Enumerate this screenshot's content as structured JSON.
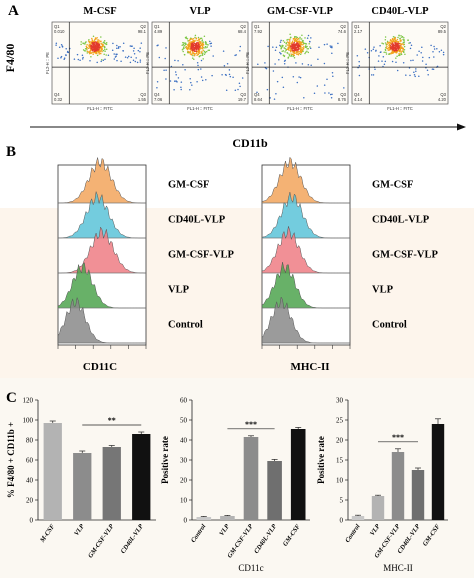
{
  "panel_labels": {
    "a": "A",
    "b": "B",
    "c": "C"
  },
  "panel_a": {
    "y_axis_label": "F4/80",
    "x_axis_label": "CD11b",
    "tick_x_label": "FL1-H :: FITC",
    "tick_y_label": "FL2-H :: PE",
    "plots": [
      {
        "title": "M-CSF",
        "q1": "0.010",
        "q2": "98.1",
        "q3": "1.55",
        "q4": "0.32"
      },
      {
        "title": "VLP",
        "q1": "4.89",
        "q2": "68.4",
        "q3": "19.7",
        "q4": "7.06"
      },
      {
        "title": "GM-CSF-VLP",
        "q1": "7.92",
        "q2": "74.6",
        "q3": "8.76",
        "q4": "8.64"
      },
      {
        "title": "CD40L-VLP",
        "q1": "2.17",
        "q2": "89.5",
        "q3": "4.20",
        "q4": "4.14"
      }
    ]
  },
  "panel_b": {
    "groups": [
      "GM-CSF",
      "CD40L-VLP",
      "GM-CSF-VLP",
      "VLP",
      "Control"
    ],
    "colors": [
      "#f2a55c",
      "#5bc3d8",
      "#ee7c84",
      "#4ea34e",
      "#8a8a8a"
    ],
    "left_xlabel": "CD11C",
    "right_xlabel": "MHC-II"
  },
  "chart_data": [
    {
      "type": "bar",
      "categories": [
        "M-CSF",
        "VLP",
        "GM-CSF-VLP",
        "CD40L-VLP"
      ],
      "values": [
        97,
        67,
        73,
        86
      ],
      "errors": [
        2,
        2,
        1.5,
        2
      ],
      "colors": [
        "#b3b3b3",
        "#8c8c8c",
        "#767676",
        "#111111"
      ],
      "ylabel": "% F4/80 + CD11b +",
      "xlabel": "",
      "ylim": [
        0,
        120
      ],
      "yticks": [
        0,
        20,
        40,
        60,
        80,
        100,
        120
      ],
      "significance": {
        "label": "**",
        "from": 1,
        "to": 3
      }
    },
    {
      "type": "bar",
      "categories": [
        "Control",
        "VLP",
        "GM-CSF-VLP",
        "CD40L-VLP",
        "GM-CSF"
      ],
      "values": [
        1.5,
        2,
        41.5,
        29.5,
        45.5
      ],
      "errors": [
        0.3,
        0.3,
        0.6,
        0.8,
        0.8
      ],
      "colors": [
        "#c8c8c8",
        "#b3b3b3",
        "#8c8c8c",
        "#6f6f6f",
        "#111111"
      ],
      "ylabel": "Positive rate",
      "xlabel": "CD11c",
      "ylim": [
        0,
        60
      ],
      "yticks": [
        0,
        10,
        20,
        30,
        40,
        50,
        60
      ],
      "significance": {
        "label": "***",
        "from": 1,
        "to": 3
      }
    },
    {
      "type": "bar",
      "categories": [
        "Control",
        "VLP",
        "GM-CSF-VLP",
        "CD40L-VLP",
        "GM-CSF"
      ],
      "values": [
        1,
        6,
        17,
        12.5,
        24
      ],
      "errors": [
        0.2,
        0.2,
        0.8,
        0.5,
        1.3
      ],
      "colors": [
        "#c8c8c8",
        "#b3b3b3",
        "#8c8c8c",
        "#6f6f6f",
        "#111111"
      ],
      "ylabel": "Positive rate",
      "xlabel": "MHC-II",
      "ylim": [
        0,
        30
      ],
      "yticks": [
        0,
        5,
        10,
        15,
        20,
        25,
        30
      ],
      "significance": {
        "label": "***",
        "from": 1,
        "to": 3
      }
    }
  ]
}
